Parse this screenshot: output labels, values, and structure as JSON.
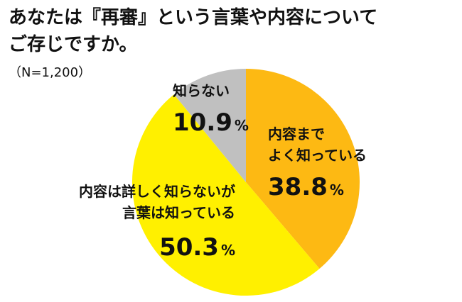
{
  "title": {
    "line1": "あなたは『再審』という言葉や内容について",
    "line2": "ご存じですか。"
  },
  "subtitle": "（N=1,200）",
  "chart_data": {
    "type": "pie",
    "start_angle_deg": 0,
    "direction": "clockwise",
    "slices": [
      {
        "label_lines": [
          "内容まで",
          "よく知っている"
        ],
        "value": 38.8,
        "value_text": "38.8",
        "unit": "%",
        "color": "#FDB913"
      },
      {
        "label_lines": [
          "内容は詳しく知らないが",
          "言葉は知っている"
        ],
        "value": 50.3,
        "value_text": "50.3",
        "unit": "%",
        "color": "#FFF000"
      },
      {
        "label_lines": [
          "知らない"
        ],
        "value": 10.9,
        "value_text": "10.9",
        "unit": "%",
        "color": "#C0C0C0"
      }
    ]
  }
}
